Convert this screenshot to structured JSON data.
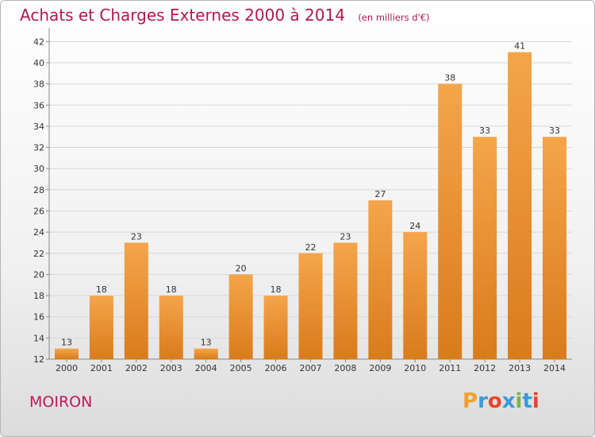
{
  "title": "Achats et Charges Externes 2000 à 2014",
  "subtitle": "(en milliers d'€)",
  "place": "MOIRON",
  "brand": {
    "letters": [
      "P",
      "r",
      "o",
      "x",
      "i",
      "t",
      "i"
    ],
    "colors": [
      "#f0a030",
      "#3a9ad9",
      "#e8452c",
      "#3a9ad9",
      "#7ab648",
      "#3a9ad9",
      "#e8452c"
    ]
  },
  "colors": {
    "title": "#b2184a",
    "bar_top": "#f5a54a",
    "bar_bottom": "#d97b1c",
    "grid": "#d7d7d7",
    "axis_text": "#333333"
  },
  "chart_data": {
    "type": "bar",
    "categories": [
      "2000",
      "2001",
      "2002",
      "2003",
      "2004",
      "2005",
      "2006",
      "2007",
      "2008",
      "2009",
      "2010",
      "2011",
      "2012",
      "2013",
      "2014"
    ],
    "values": [
      13,
      18,
      23,
      18,
      13,
      20,
      18,
      22,
      23,
      27,
      24,
      38,
      33,
      41,
      33
    ],
    "ylim": [
      12,
      43
    ],
    "yticks": [
      12,
      14,
      16,
      18,
      20,
      22,
      24,
      26,
      28,
      30,
      32,
      34,
      36,
      38,
      40,
      42
    ],
    "grid": true,
    "xlabel": "",
    "ylabel": ""
  }
}
